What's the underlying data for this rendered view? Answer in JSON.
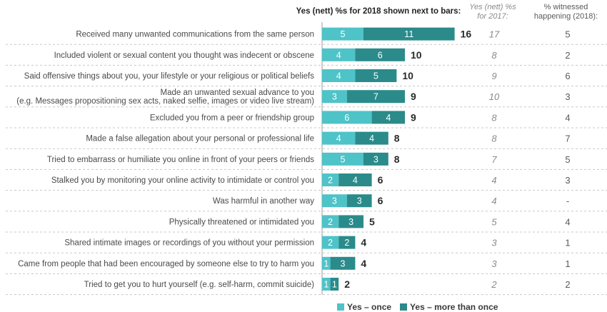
{
  "header": {
    "main": "Yes (nett) %s for 2018 shown next to bars:",
    "col2017": "Yes (nett) %s for 2017:",
    "col_witnessed": "% witnessed happening (2018):"
  },
  "colors": {
    "once": "#4ec3c8",
    "more": "#2a8b8a",
    "dash": "#c8c8c8"
  },
  "chart_data": {
    "type": "bar",
    "orientation": "horizontal",
    "stacked": true,
    "categories": [
      [
        "Received many unwanted communications from the same person"
      ],
      [
        "Included violent or sexual content you thought was indecent or obscene"
      ],
      [
        "Said offensive things about you, your lifestyle or your religious or political beliefs"
      ],
      [
        "Made an unwanted sexual advance to you",
        "(e.g. Messages propositioning sex acts, naked selfie, images or video live stream)"
      ],
      [
        "Excluded you from a peer or friendship group"
      ],
      [
        "Made a false allegation about your personal or professional life"
      ],
      [
        "Tried to embarrass or humiliate you online in front of your peers or friends"
      ],
      [
        "Stalked you by monitoring your online activity to intimidate or control you"
      ],
      [
        "Was harmful in another way"
      ],
      [
        "Physically threatened or intimidated you"
      ],
      [
        "Shared intimate images or recordings of you without your permission"
      ],
      [
        "Came from people that had been encouraged by someone else to try to harm you"
      ],
      [
        "Tried to get you to hurt yourself (e.g. self-harm, commit suicide)"
      ]
    ],
    "series": [
      {
        "name": "Yes – once",
        "values": [
          5,
          4,
          4,
          3,
          6,
          4,
          5,
          2,
          3,
          2,
          2,
          1,
          1
        ]
      },
      {
        "name": "Yes – more than once",
        "values": [
          11,
          6,
          5,
          7,
          4,
          4,
          3,
          4,
          3,
          3,
          2,
          3,
          1
        ]
      }
    ],
    "totals": [
      16,
      10,
      10,
      9,
      9,
      8,
      8,
      6,
      6,
      5,
      4,
      4,
      2
    ],
    "values_2017": [
      "17",
      "8",
      "9",
      "10",
      "8",
      "8",
      "7",
      "4",
      "4",
      "5",
      "3",
      "3",
      "2"
    ],
    "witnessed_2018": [
      "5",
      "2",
      "6",
      "3",
      "4",
      "7",
      "5",
      "3",
      "-",
      "4",
      "1",
      "1",
      "2"
    ],
    "legend": "bottom"
  }
}
